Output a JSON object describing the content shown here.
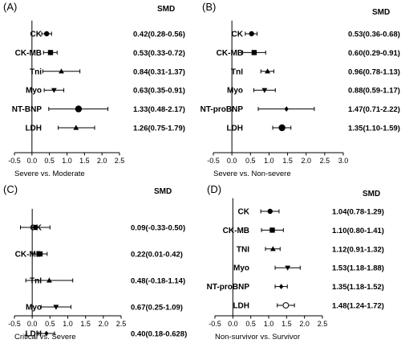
{
  "chart_data": [
    {
      "type": "forest",
      "panel": "(A)",
      "column_header": "SMD",
      "xlabel": "Severe vs. Moderate",
      "xlim": [
        -0.5,
        2.5
      ],
      "xticks": [
        "-0.5",
        "0.0",
        "0.5",
        "1.0",
        "1.5",
        "2.0",
        "2.5"
      ],
      "rows": [
        {
          "label": "CK",
          "estimate": 0.42,
          "lower": 0.28,
          "upper": 0.56,
          "text": "0.42(0.28-0.56)",
          "marker": "circle"
        },
        {
          "label": "CK-MB",
          "estimate": 0.53,
          "lower": 0.33,
          "upper": 0.72,
          "text": "0.53(0.33-0.72)",
          "marker": "square"
        },
        {
          "label": "Tni",
          "estimate": 0.84,
          "lower": 0.31,
          "upper": 1.37,
          "text": "0.84(0.31-1.37)",
          "marker": "triangle-up"
        },
        {
          "label": "Myo",
          "estimate": 0.63,
          "lower": 0.35,
          "upper": 0.91,
          "text": "0.63(0.35-0.91)",
          "marker": "triangle-down"
        },
        {
          "label": "NT-BNP",
          "estimate": 1.33,
          "lower": 0.48,
          "upper": 2.17,
          "text": "1.33(0.48-2.17)",
          "marker": "circle-large"
        },
        {
          "label": "LDH",
          "estimate": 1.26,
          "lower": 0.75,
          "upper": 1.79,
          "text": "1.26(0.75-1.79)",
          "marker": "triangle-up"
        }
      ]
    },
    {
      "type": "forest",
      "panel": "(B)",
      "column_header": "SMD",
      "xlabel": "Severe vs. Non-severe",
      "xlim": [
        -0.5,
        3.0
      ],
      "xticks": [
        "-0.5",
        "0.0",
        "0.5",
        "1.0",
        "1.5",
        "2.0",
        "2.5",
        "3.0"
      ],
      "rows": [
        {
          "label": "CK",
          "estimate": 0.53,
          "lower": 0.36,
          "upper": 0.68,
          "text": "0.53(0.36-0.68)",
          "marker": "circle"
        },
        {
          "label": "CK-MB",
          "estimate": 0.6,
          "lower": 0.29,
          "upper": 0.91,
          "text": "0.60(0.29-0.91)",
          "marker": "square"
        },
        {
          "label": "TnI",
          "estimate": 0.96,
          "lower": 0.78,
          "upper": 1.13,
          "text": "0.96(0.78-1.13)",
          "marker": "triangle-up"
        },
        {
          "label": "Myo",
          "estimate": 0.88,
          "lower": 0.59,
          "upper": 1.17,
          "text": "0.88(0.59-1.17)",
          "marker": "triangle-down"
        },
        {
          "label": "NT-proBNP",
          "estimate": 1.47,
          "lower": 0.71,
          "upper": 2.22,
          "text": "1.47(0.71-2.22)",
          "marker": "diamond"
        },
        {
          "label": "LDH",
          "estimate": 1.35,
          "lower": 1.1,
          "upper": 1.59,
          "text": "1.35(1.10-1.59)",
          "marker": "circle-large"
        }
      ]
    },
    {
      "type": "forest",
      "panel": "(C)",
      "column_header": "SMD",
      "xlabel": "Critical vs. Severe",
      "xlim": [
        -0.5,
        2.5
      ],
      "xticks": [
        "-0.5",
        "0.0",
        "0.5",
        "1.0",
        "1.5",
        "2.0",
        "2.5"
      ],
      "rows": [
        {
          "label": "CK",
          "estimate": 0.09,
          "lower": -0.33,
          "upper": 0.5,
          "text": "0.09(-0.33-0.50)",
          "marker": "circle"
        },
        {
          "label": "CK-MB",
          "estimate": 0.22,
          "lower": 0.01,
          "upper": 0.42,
          "text": "0.22(0.01-0.42)",
          "marker": "square"
        },
        {
          "label": "TnI",
          "estimate": 0.48,
          "lower": -0.18,
          "upper": 1.14,
          "text": "0.48(-0.18-1.14)",
          "marker": "triangle-up"
        },
        {
          "label": "Myo",
          "estimate": 0.67,
          "lower": 0.25,
          "upper": 1.09,
          "text": "0.67(0.25-1.09)",
          "marker": "triangle-down"
        },
        {
          "label": "LDH",
          "estimate": 0.4,
          "lower": 0.18,
          "upper": 0.628,
          "text": "0.40(0.18-0.628)",
          "marker": "diamond"
        }
      ]
    },
    {
      "type": "forest",
      "panel": "(D)",
      "column_header": "SMD",
      "xlabel": "Non-survivor vs. Survivor",
      "xlim": [
        -0.5,
        2.5
      ],
      "xticks": [
        "-0.5",
        "0.0",
        "0.5",
        "1.0",
        "1.5",
        "2.0",
        "2.5"
      ],
      "rows": [
        {
          "label": "CK",
          "estimate": 1.04,
          "lower": 0.78,
          "upper": 1.29,
          "text": "1.04(0.78-1.29)",
          "marker": "circle"
        },
        {
          "label": "CK-MB",
          "estimate": 1.1,
          "lower": 0.8,
          "upper": 1.41,
          "text": "1.10(0.80-1.41)",
          "marker": "square"
        },
        {
          "label": "TNI",
          "estimate": 1.12,
          "lower": 0.91,
          "upper": 1.32,
          "text": "1.12(0.91-1.32)",
          "marker": "triangle-up"
        },
        {
          "label": "Myo",
          "estimate": 1.53,
          "lower": 1.18,
          "upper": 1.88,
          "text": "1.53(1.18-1.88)",
          "marker": "triangle-down"
        },
        {
          "label": "NT-proBNP",
          "estimate": 1.35,
          "lower": 1.18,
          "upper": 1.52,
          "text": "1.35(1.18-1.52)",
          "marker": "diamond"
        },
        {
          "label": "LDH",
          "estimate": 1.48,
          "lower": 1.24,
          "upper": 1.72,
          "text": "1.48(1.24-1.72)",
          "marker": "circle-open"
        }
      ]
    }
  ]
}
